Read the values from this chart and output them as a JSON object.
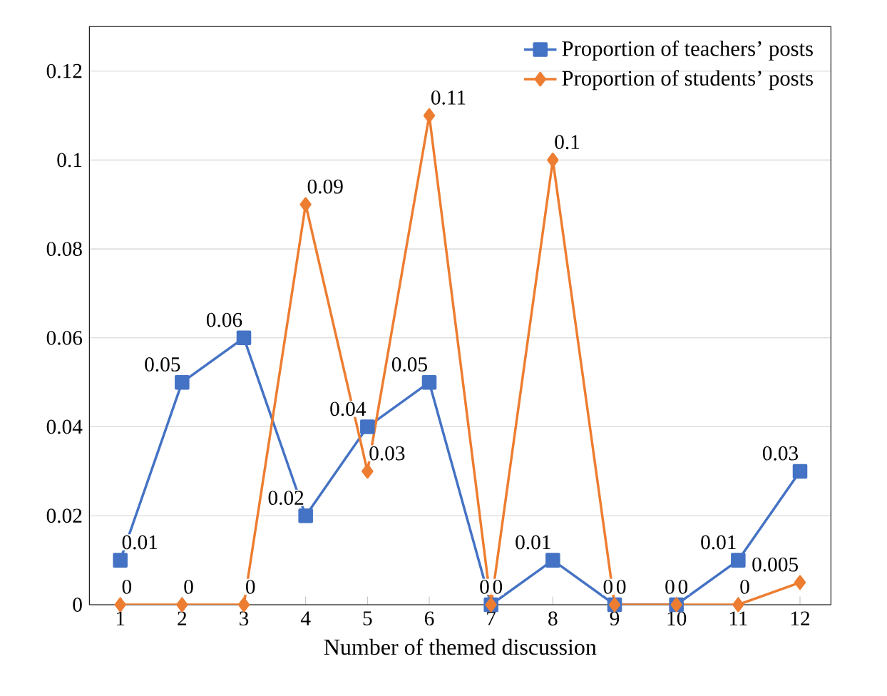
{
  "chart_data": {
    "type": "line",
    "xlabel": "Number of themed discussion",
    "categories": [
      "1",
      "2",
      "3",
      "4",
      "5",
      "6",
      "7",
      "8",
      "9",
      "10",
      "11",
      "12"
    ],
    "series": [
      {
        "name": "Proportion of teachers’ posts",
        "color": "#4472c4",
        "marker": "square",
        "values": [
          0.01,
          0.05,
          0.06,
          0.02,
          0.04,
          0.05,
          0,
          0.01,
          0,
          0,
          0.01,
          0.03
        ],
        "value_labels": [
          "0.01",
          "0.05",
          "0.06",
          "0.02",
          "0.04",
          "0.05",
          "0",
          "0.01",
          "0",
          "0",
          "0.01",
          "0.03"
        ]
      },
      {
        "name": "Proportion of students’ posts",
        "color": "#ed7d31",
        "marker": "diamond",
        "values": [
          0,
          0,
          0,
          0.09,
          0.03,
          0.11,
          0,
          0.1,
          0,
          0,
          0,
          0.005
        ],
        "value_labels": [
          "0",
          "0",
          "0",
          "0.09",
          "0.03",
          "0.11",
          "0",
          "0.1",
          "0",
          "0",
          "0",
          "0.005"
        ]
      }
    ],
    "ylim": [
      0,
      0.13
    ],
    "yticks": [
      0,
      0.02,
      0.04,
      0.06,
      0.08,
      0.1,
      0.12
    ],
    "grid": "y",
    "legend": "top right",
    "line_style": "solid"
  }
}
